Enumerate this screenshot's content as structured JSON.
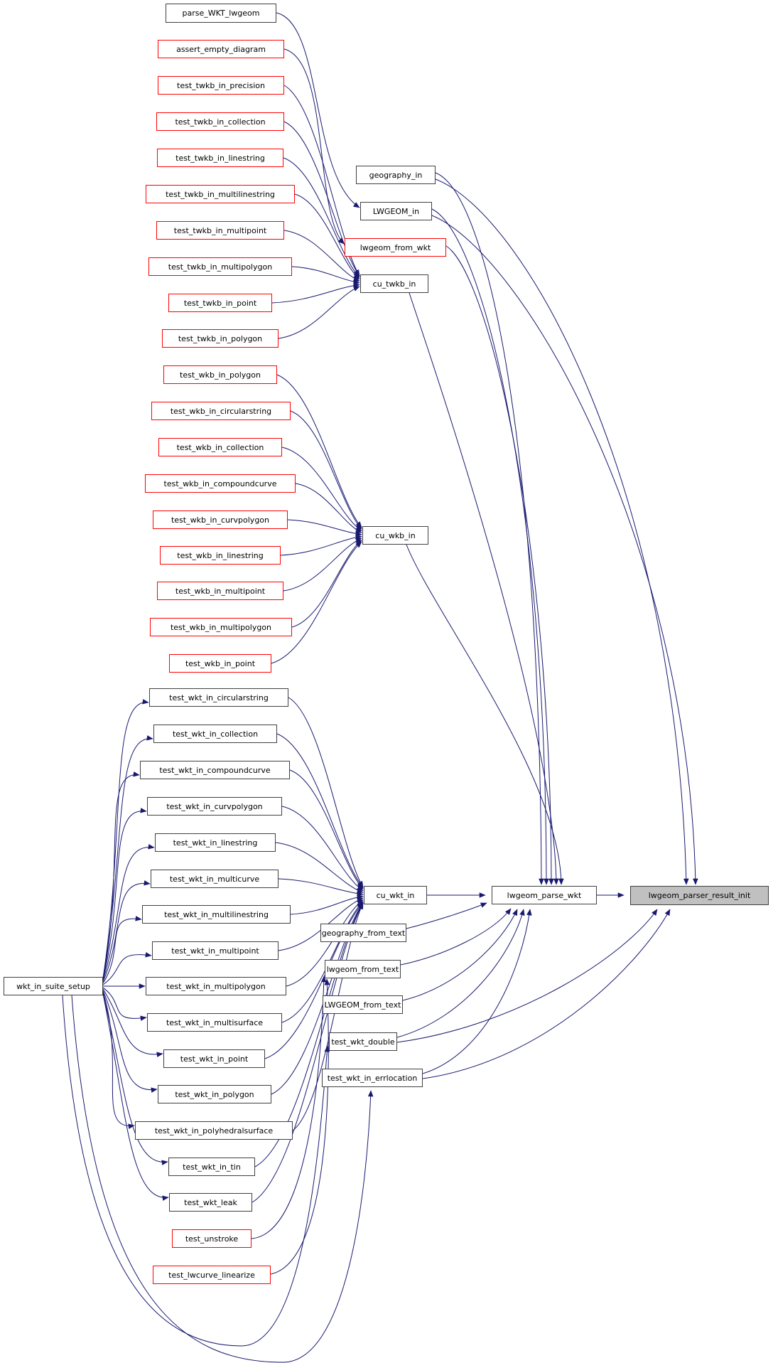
{
  "diagram": {
    "type": "call-graph",
    "focus_function": "lwgeom_parser_result_init",
    "colors": {
      "edge": "#191970",
      "node_border": "#404040",
      "red_node_border": "#ff0000",
      "focus_node_fill": "#c0c0c0",
      "node_fill": "#ffffff",
      "text": "#000000",
      "background": "#ffffff"
    },
    "nodes": [
      {
        "id": "parse_WKT_lwgeom",
        "label": "parse_WKT_lwgeom",
        "style": "plain"
      },
      {
        "id": "assert_empty_diagram",
        "label": "assert_empty_diagram",
        "style": "red"
      },
      {
        "id": "test_twkb_in_precision",
        "label": "test_twkb_in_precision",
        "style": "red"
      },
      {
        "id": "test_twkb_in_collection",
        "label": "test_twkb_in_collection",
        "style": "red"
      },
      {
        "id": "test_twkb_in_linestring",
        "label": "test_twkb_in_linestring",
        "style": "red"
      },
      {
        "id": "test_twkb_in_multilinestring",
        "label": "test_twkb_in_multilinestring",
        "style": "red"
      },
      {
        "id": "test_twkb_in_multipoint",
        "label": "test_twkb_in_multipoint",
        "style": "red"
      },
      {
        "id": "test_twkb_in_multipolygon",
        "label": "test_twkb_in_multipolygon",
        "style": "red"
      },
      {
        "id": "test_twkb_in_point",
        "label": "test_twkb_in_point",
        "style": "red"
      },
      {
        "id": "test_twkb_in_polygon",
        "label": "test_twkb_in_polygon",
        "style": "red"
      },
      {
        "id": "test_wkb_in_polygon",
        "label": "test_wkb_in_polygon",
        "style": "red"
      },
      {
        "id": "test_wkb_in_circularstring",
        "label": "test_wkb_in_circularstring",
        "style": "red"
      },
      {
        "id": "test_wkb_in_collection",
        "label": "test_wkb_in_collection",
        "style": "red"
      },
      {
        "id": "test_wkb_in_compoundcurve",
        "label": "test_wkb_in_compoundcurve",
        "style": "red"
      },
      {
        "id": "test_wkb_in_curvpolygon",
        "label": "test_wkb_in_curvpolygon",
        "style": "red"
      },
      {
        "id": "test_wkb_in_linestring",
        "label": "test_wkb_in_linestring",
        "style": "red"
      },
      {
        "id": "test_wkb_in_multipoint",
        "label": "test_wkb_in_multipoint",
        "style": "red"
      },
      {
        "id": "test_wkb_in_multipolygon",
        "label": "test_wkb_in_multipolygon",
        "style": "red"
      },
      {
        "id": "test_wkb_in_point",
        "label": "test_wkb_in_point",
        "style": "red"
      },
      {
        "id": "test_wkt_in_circularstring",
        "label": "test_wkt_in_circularstring",
        "style": "plain"
      },
      {
        "id": "test_wkt_in_collection",
        "label": "test_wkt_in_collection",
        "style": "plain"
      },
      {
        "id": "test_wkt_in_compoundcurve",
        "label": "test_wkt_in_compoundcurve",
        "style": "plain"
      },
      {
        "id": "test_wkt_in_curvpolygon",
        "label": "test_wkt_in_curvpolygon",
        "style": "plain"
      },
      {
        "id": "test_wkt_in_linestring",
        "label": "test_wkt_in_linestring",
        "style": "plain"
      },
      {
        "id": "test_wkt_in_multicurve",
        "label": "test_wkt_in_multicurve",
        "style": "plain"
      },
      {
        "id": "test_wkt_in_multilinestring",
        "label": "test_wkt_in_multilinestring",
        "style": "plain"
      },
      {
        "id": "test_wkt_in_multipoint",
        "label": "test_wkt_in_multipoint",
        "style": "plain"
      },
      {
        "id": "test_wkt_in_multipolygon",
        "label": "test_wkt_in_multipolygon",
        "style": "plain"
      },
      {
        "id": "test_wkt_in_multisurface",
        "label": "test_wkt_in_multisurface",
        "style": "plain"
      },
      {
        "id": "test_wkt_in_point",
        "label": "test_wkt_in_point",
        "style": "plain"
      },
      {
        "id": "test_wkt_in_polygon",
        "label": "test_wkt_in_polygon",
        "style": "plain"
      },
      {
        "id": "test_wkt_in_polyhedralsurface",
        "label": "test_wkt_in_polyhedralsurface",
        "style": "plain"
      },
      {
        "id": "test_wkt_in_tin",
        "label": "test_wkt_in_tin",
        "style": "plain"
      },
      {
        "id": "test_wkt_leak",
        "label": "test_wkt_leak",
        "style": "plain"
      },
      {
        "id": "test_unstroke",
        "label": "test_unstroke",
        "style": "red"
      },
      {
        "id": "test_lwcurve_linearize",
        "label": "test_lwcurve_linearize",
        "style": "red"
      },
      {
        "id": "wkt_in_suite_setup",
        "label": "wkt_in_suite_setup",
        "style": "plain"
      },
      {
        "id": "geography_in",
        "label": "geography_in",
        "style": "plain"
      },
      {
        "id": "LWGEOM_in",
        "label": "LWGEOM_in",
        "style": "plain"
      },
      {
        "id": "lwgeom_from_wkt",
        "label": "lwgeom_from_wkt",
        "style": "red"
      },
      {
        "id": "cu_twkb_in",
        "label": "cu_twkb_in",
        "style": "plain"
      },
      {
        "id": "cu_wkb_in",
        "label": "cu_wkb_in",
        "style": "plain"
      },
      {
        "id": "cu_wkt_in",
        "label": "cu_wkt_in",
        "style": "plain"
      },
      {
        "id": "geography_from_text",
        "label": "geography_from_text",
        "style": "plain"
      },
      {
        "id": "lwgeom_from_text",
        "label": "lwgeom_from_text",
        "style": "plain"
      },
      {
        "id": "LWGEOM_from_text",
        "label": "LWGEOM_from_text",
        "style": "plain"
      },
      {
        "id": "test_wkt_double",
        "label": "test_wkt_double",
        "style": "plain"
      },
      {
        "id": "test_wkt_in_errlocation",
        "label": "test_wkt_in_errlocation",
        "style": "plain"
      },
      {
        "id": "lwgeom_parse_wkt",
        "label": "lwgeom_parse_wkt",
        "style": "plain"
      },
      {
        "id": "lwgeom_parser_result_init",
        "label": "lwgeom_parser_result_init",
        "style": "focus"
      }
    ],
    "edges": [
      {
        "from": "parse_WKT_lwgeom",
        "to": "LWGEOM_in"
      },
      {
        "from": "assert_empty_diagram",
        "to": "lwgeom_from_wkt"
      },
      {
        "from": "test_twkb_in_precision",
        "to": "cu_twkb_in"
      },
      {
        "from": "test_twkb_in_collection",
        "to": "cu_twkb_in"
      },
      {
        "from": "test_twkb_in_linestring",
        "to": "cu_twkb_in"
      },
      {
        "from": "test_twkb_in_multilinestring",
        "to": "cu_twkb_in"
      },
      {
        "from": "test_twkb_in_multipoint",
        "to": "cu_twkb_in"
      },
      {
        "from": "test_twkb_in_multipolygon",
        "to": "cu_twkb_in"
      },
      {
        "from": "test_twkb_in_point",
        "to": "cu_twkb_in"
      },
      {
        "from": "test_twkb_in_polygon",
        "to": "cu_twkb_in"
      },
      {
        "from": "test_wkb_in_polygon",
        "to": "cu_wkb_in"
      },
      {
        "from": "test_wkb_in_circularstring",
        "to": "cu_wkb_in"
      },
      {
        "from": "test_wkb_in_collection",
        "to": "cu_wkb_in"
      },
      {
        "from": "test_wkb_in_compoundcurve",
        "to": "cu_wkb_in"
      },
      {
        "from": "test_wkb_in_curvpolygon",
        "to": "cu_wkb_in"
      },
      {
        "from": "test_wkb_in_linestring",
        "to": "cu_wkb_in"
      },
      {
        "from": "test_wkb_in_multipoint",
        "to": "cu_wkb_in"
      },
      {
        "from": "test_wkb_in_multipolygon",
        "to": "cu_wkb_in"
      },
      {
        "from": "test_wkb_in_point",
        "to": "cu_wkb_in"
      },
      {
        "from": "test_wkt_in_circularstring",
        "to": "cu_wkt_in"
      },
      {
        "from": "test_wkt_in_collection",
        "to": "cu_wkt_in"
      },
      {
        "from": "test_wkt_in_compoundcurve",
        "to": "cu_wkt_in"
      },
      {
        "from": "test_wkt_in_curvpolygon",
        "to": "cu_wkt_in"
      },
      {
        "from": "test_wkt_in_linestring",
        "to": "cu_wkt_in"
      },
      {
        "from": "test_wkt_in_multicurve",
        "to": "cu_wkt_in"
      },
      {
        "from": "test_wkt_in_multilinestring",
        "to": "cu_wkt_in"
      },
      {
        "from": "test_wkt_in_multipoint",
        "to": "cu_wkt_in"
      },
      {
        "from": "test_wkt_in_multipolygon",
        "to": "cu_wkt_in"
      },
      {
        "from": "test_wkt_in_multisurface",
        "to": "cu_wkt_in"
      },
      {
        "from": "test_wkt_in_point",
        "to": "cu_wkt_in"
      },
      {
        "from": "test_wkt_in_polygon",
        "to": "cu_wkt_in"
      },
      {
        "from": "test_wkt_in_polyhedralsurface",
        "to": "cu_wkt_in"
      },
      {
        "from": "test_wkt_in_tin",
        "to": "cu_wkt_in"
      },
      {
        "from": "test_wkt_leak",
        "to": "cu_wkt_in"
      },
      {
        "from": "wkt_in_suite_setup",
        "to": "test_wkt_in_circularstring"
      },
      {
        "from": "wkt_in_suite_setup",
        "to": "test_wkt_in_collection"
      },
      {
        "from": "wkt_in_suite_setup",
        "to": "test_wkt_in_compoundcurve"
      },
      {
        "from": "wkt_in_suite_setup",
        "to": "test_wkt_in_curvpolygon"
      },
      {
        "from": "wkt_in_suite_setup",
        "to": "test_wkt_in_linestring"
      },
      {
        "from": "wkt_in_suite_setup",
        "to": "test_wkt_in_multicurve"
      },
      {
        "from": "wkt_in_suite_setup",
        "to": "test_wkt_in_multilinestring"
      },
      {
        "from": "wkt_in_suite_setup",
        "to": "test_wkt_in_multipoint"
      },
      {
        "from": "wkt_in_suite_setup",
        "to": "test_wkt_in_multipolygon"
      },
      {
        "from": "wkt_in_suite_setup",
        "to": "test_wkt_in_multisurface"
      },
      {
        "from": "wkt_in_suite_setup",
        "to": "test_wkt_in_point"
      },
      {
        "from": "wkt_in_suite_setup",
        "to": "test_wkt_in_polygon"
      },
      {
        "from": "wkt_in_suite_setup",
        "to": "test_wkt_in_polyhedralsurface"
      },
      {
        "from": "wkt_in_suite_setup",
        "to": "test_wkt_in_tin"
      },
      {
        "from": "wkt_in_suite_setup",
        "to": "test_wkt_leak"
      },
      {
        "from": "wkt_in_suite_setup",
        "to": "test_wkt_double"
      },
      {
        "from": "wkt_in_suite_setup",
        "to": "test_wkt_in_errlocation"
      },
      {
        "from": "test_unstroke",
        "to": "lwgeom_from_text"
      },
      {
        "from": "test_lwcurve_linearize",
        "to": "lwgeom_from_text"
      },
      {
        "from": "geography_in",
        "to": "lwgeom_parse_wkt"
      },
      {
        "from": "LWGEOM_in",
        "to": "lwgeom_parse_wkt"
      },
      {
        "from": "lwgeom_from_wkt",
        "to": "lwgeom_parse_wkt"
      },
      {
        "from": "cu_twkb_in",
        "to": "lwgeom_parse_wkt"
      },
      {
        "from": "cu_wkb_in",
        "to": "lwgeom_parse_wkt"
      },
      {
        "from": "cu_wkt_in",
        "to": "lwgeom_parse_wkt"
      },
      {
        "from": "geography_from_text",
        "to": "lwgeom_parse_wkt"
      },
      {
        "from": "lwgeom_from_text",
        "to": "lwgeom_parse_wkt"
      },
      {
        "from": "LWGEOM_from_text",
        "to": "lwgeom_parse_wkt"
      },
      {
        "from": "test_wkt_double",
        "to": "lwgeom_parse_wkt"
      },
      {
        "from": "test_wkt_in_errlocation",
        "to": "lwgeom_parse_wkt"
      },
      {
        "from": "lwgeom_parse_wkt",
        "to": "lwgeom_parser_result_init"
      },
      {
        "from": "geography_in",
        "to": "lwgeom_parser_result_init"
      },
      {
        "from": "LWGEOM_in",
        "to": "lwgeom_parser_result_init"
      },
      {
        "from": "test_wkt_double",
        "to": "lwgeom_parser_result_init"
      },
      {
        "from": "test_wkt_in_errlocation",
        "to": "lwgeom_parser_result_init"
      }
    ]
  }
}
